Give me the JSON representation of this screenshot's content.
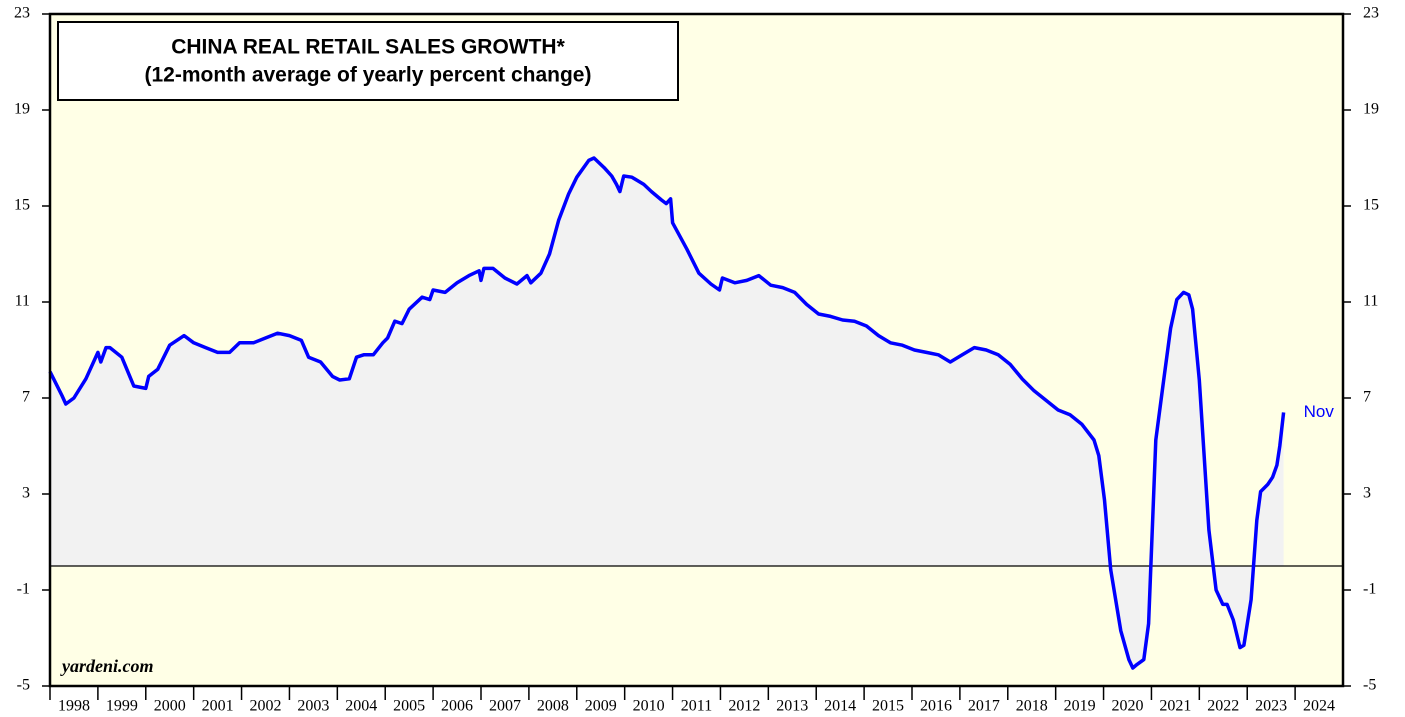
{
  "chart_data": {
    "type": "area-line",
    "title": "CHINA REAL RETAIL SALES GROWTH*",
    "subtitle": "(12-month average of yearly percent change)",
    "annotations": [
      "Nov",
      "yardeni.com"
    ],
    "color": "#0000ff",
    "fill_color": "#f2f2f2",
    "background": "#ffffe6",
    "x": [
      1998.0,
      1998.25,
      1998.33,
      1998.5,
      1998.75,
      1999.0,
      1999.06,
      1999.17,
      1999.25,
      1999.5,
      1999.75,
      2000.0,
      2000.06,
      2000.25,
      2000.5,
      2000.8,
      2001.0,
      2001.25,
      2001.5,
      2001.75,
      2001.96,
      2002.25,
      2002.5,
      2002.75,
      2003.0,
      2003.25,
      2003.4,
      2003.65,
      2003.9,
      2004.05,
      2004.25,
      2004.4,
      2004.55,
      2004.75,
      2004.95,
      2005.05,
      2005.2,
      2005.35,
      2005.5,
      2005.77,
      2005.93,
      2006.0,
      2006.25,
      2006.5,
      2006.75,
      2006.96,
      2007.0,
      2007.06,
      2007.25,
      2007.5,
      2007.75,
      2007.96,
      2008.04,
      2008.25,
      2008.43,
      2008.62,
      2008.83,
      2009.0,
      2009.25,
      2009.36,
      2009.57,
      2009.73,
      2009.83,
      2009.9,
      2009.98,
      2010.15,
      2010.4,
      2010.56,
      2010.77,
      2010.87,
      2010.96,
      2011.0,
      2011.3,
      2011.55,
      2011.8,
      2011.98,
      2012.04,
      2012.3,
      2012.55,
      2012.8,
      2013.05,
      2013.3,
      2013.55,
      2013.8,
      2014.05,
      2014.3,
      2014.55,
      2014.8,
      2015.05,
      2015.3,
      2015.55,
      2015.8,
      2016.05,
      2016.3,
      2016.55,
      2016.8,
      2017.05,
      2017.3,
      2017.55,
      2017.8,
      2018.05,
      2018.3,
      2018.55,
      2018.8,
      2019.05,
      2019.3,
      2019.55,
      2019.8,
      2019.9,
      2020.02,
      2020.15,
      2020.36,
      2020.53,
      2020.61,
      2020.7,
      2020.84,
      2020.94,
      2021.09,
      2021.24,
      2021.4,
      2021.53,
      2021.67,
      2021.78,
      2021.86,
      2022.0,
      2022.2,
      2022.35,
      2022.49,
      2022.58,
      2022.71,
      2022.85,
      2022.93,
      2023.08,
      2023.2,
      2023.28,
      2023.43,
      2023.53,
      2023.62,
      2023.68,
      2023.76
    ],
    "values": [
      8.1,
      7.1,
      6.75,
      7.0,
      7.8,
      8.9,
      8.5,
      9.1,
      9.1,
      8.7,
      7.5,
      7.4,
      7.9,
      8.2,
      9.2,
      9.6,
      9.3,
      9.1,
      8.9,
      8.9,
      9.3,
      9.3,
      9.5,
      9.7,
      9.6,
      9.4,
      8.7,
      8.5,
      7.9,
      7.75,
      7.8,
      8.7,
      8.8,
      8.8,
      9.3,
      9.5,
      10.2,
      10.1,
      10.7,
      11.2,
      11.1,
      11.5,
      11.4,
      11.8,
      12.1,
      12.3,
      11.9,
      12.4,
      12.4,
      12.0,
      11.75,
      12.1,
      11.8,
      12.2,
      13.0,
      14.4,
      15.5,
      16.2,
      16.9,
      17.0,
      16.6,
      16.25,
      15.9,
      15.6,
      16.25,
      16.2,
      15.9,
      15.6,
      15.25,
      15.1,
      15.3,
      14.3,
      13.2,
      12.2,
      11.75,
      11.5,
      12.0,
      11.8,
      11.9,
      12.1,
      11.7,
      11.6,
      11.4,
      10.9,
      10.5,
      10.4,
      10.25,
      10.2,
      10.0,
      9.6,
      9.3,
      9.2,
      9.0,
      8.9,
      8.8,
      8.5,
      8.8,
      9.1,
      9.0,
      8.8,
      8.4,
      7.8,
      7.3,
      6.9,
      6.5,
      6.3,
      5.9,
      5.25,
      4.6,
      2.75,
      -0.15,
      -2.7,
      -3.9,
      -4.25,
      -4.1,
      -3.9,
      -2.4,
      5.25,
      7.5,
      9.9,
      11.1,
      11.4,
      11.3,
      10.7,
      7.75,
      1.5,
      -1.0,
      -1.6,
      -1.6,
      -2.25,
      -3.4,
      -3.3,
      -1.4,
      1.9,
      3.1,
      3.4,
      3.7,
      4.2,
      5.0,
      6.4
    ],
    "xlim": [
      1998,
      2025
    ],
    "xticks": [
      {
        "value": 1998.5,
        "label": "1998"
      },
      {
        "value": 1999.5,
        "label": "1999"
      },
      {
        "value": 2000.5,
        "label": "2000"
      },
      {
        "value": 2001.5,
        "label": "2001"
      },
      {
        "value": 2002.5,
        "label": "2002"
      },
      {
        "value": 2003.5,
        "label": "2003"
      },
      {
        "value": 2004.5,
        "label": "2004"
      },
      {
        "value": 2005.5,
        "label": "2005"
      },
      {
        "value": 2006.5,
        "label": "2006"
      },
      {
        "value": 2007.5,
        "label": "2007"
      },
      {
        "value": 2008.5,
        "label": "2008"
      },
      {
        "value": 2009.5,
        "label": "2009"
      },
      {
        "value": 2010.5,
        "label": "2010"
      },
      {
        "value": 2011.5,
        "label": "2011"
      },
      {
        "value": 2012.5,
        "label": "2012"
      },
      {
        "value": 2013.5,
        "label": "2013"
      },
      {
        "value": 2014.5,
        "label": "2014"
      },
      {
        "value": 2015.5,
        "label": "2015"
      },
      {
        "value": 2016.5,
        "label": "2016"
      },
      {
        "value": 2017.5,
        "label": "2017"
      },
      {
        "value": 2018.5,
        "label": "2018"
      },
      {
        "value": 2019.5,
        "label": "2019"
      },
      {
        "value": 2020.5,
        "label": "2020"
      },
      {
        "value": 2021.5,
        "label": "2021"
      },
      {
        "value": 2022.5,
        "label": "2022"
      },
      {
        "value": 2023.5,
        "label": "2023"
      },
      {
        "value": 2024.5,
        "label": "2024"
      }
    ],
    "ylim": [
      -5,
      23
    ],
    "yticks": [
      -5,
      -1,
      3,
      7,
      11,
      15,
      19,
      23
    ],
    "zero_line": 0
  }
}
